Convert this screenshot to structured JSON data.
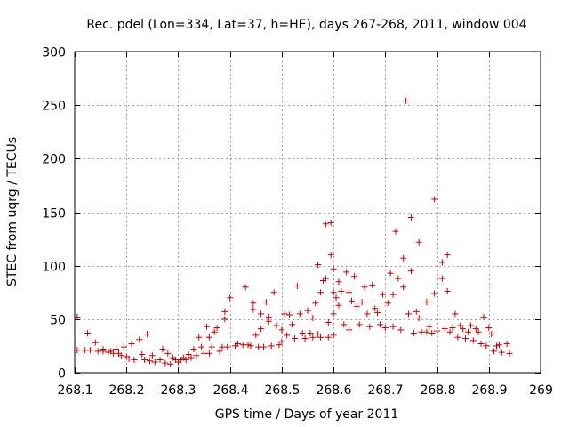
{
  "chart_data": {
    "type": "scatter",
    "title": "Rec. pdel (Lon=334, Lat=37, h=HE), days 267-268, 2011, window 004",
    "xlabel": "GPS time / Days of year 2011",
    "ylabel": "STEC from uqrg / TECUs",
    "xlim": [
      268.1,
      269.0
    ],
    "ylim": [
      0,
      300
    ],
    "xticks": [
      268.1,
      268.2,
      268.3,
      268.4,
      268.5,
      268.6,
      268.7,
      268.8,
      268.9,
      269.0
    ],
    "xtick_labels": [
      "268.1",
      "268.2",
      "268.3",
      "268.4",
      "268.5",
      "268.6",
      "268.7",
      "268.8",
      "268.9",
      "269"
    ],
    "yticks": [
      0,
      50,
      100,
      150,
      200,
      250,
      300
    ],
    "ytick_labels": [
      "0",
      "50",
      "100",
      "150",
      "200",
      "250",
      "300"
    ],
    "grid": true,
    "marker": "+",
    "color": "#cc0000",
    "series": [
      {
        "name": "STEC",
        "points": [
          [
            268.105,
            52
          ],
          [
            268.105,
            21
          ],
          [
            268.12,
            21
          ],
          [
            268.125,
            37
          ],
          [
            268.13,
            21
          ],
          [
            268.14,
            28
          ],
          [
            268.145,
            20
          ],
          [
            268.155,
            22
          ],
          [
            268.155,
            20
          ],
          [
            268.165,
            19
          ],
          [
            268.17,
            20
          ],
          [
            268.175,
            18
          ],
          [
            268.18,
            22
          ],
          [
            268.185,
            18
          ],
          [
            268.19,
            16
          ],
          [
            268.195,
            24
          ],
          [
            268.2,
            15
          ],
          [
            268.205,
            13
          ],
          [
            268.21,
            27
          ],
          [
            268.215,
            12
          ],
          [
            268.225,
            31
          ],
          [
            268.23,
            17
          ],
          [
            268.235,
            12
          ],
          [
            268.24,
            36
          ],
          [
            268.245,
            11
          ],
          [
            268.25,
            16
          ],
          [
            268.255,
            10
          ],
          [
            268.265,
            12
          ],
          [
            268.27,
            22
          ],
          [
            268.275,
            9
          ],
          [
            268.28,
            18
          ],
          [
            268.285,
            8
          ],
          [
            268.29,
            14
          ],
          [
            268.295,
            12
          ],
          [
            268.3,
            10
          ],
          [
            268.305,
            12
          ],
          [
            268.31,
            14
          ],
          [
            268.315,
            12
          ],
          [
            268.32,
            17
          ],
          [
            268.325,
            14
          ],
          [
            268.33,
            22
          ],
          [
            268.335,
            16
          ],
          [
            268.34,
            33
          ],
          [
            268.345,
            24
          ],
          [
            268.35,
            18
          ],
          [
            268.355,
            43
          ],
          [
            268.36,
            33
          ],
          [
            268.36,
            18
          ],
          [
            268.365,
            24
          ],
          [
            268.37,
            38
          ],
          [
            268.375,
            42
          ],
          [
            268.38,
            20
          ],
          [
            268.385,
            24
          ],
          [
            268.39,
            50
          ],
          [
            268.39,
            57
          ],
          [
            268.395,
            24
          ],
          [
            268.4,
            70
          ],
          [
            268.41,
            25
          ],
          [
            268.415,
            27
          ],
          [
            268.425,
            26
          ],
          [
            268.43,
            80
          ],
          [
            268.435,
            26
          ],
          [
            268.44,
            25
          ],
          [
            268.445,
            65
          ],
          [
            268.445,
            59
          ],
          [
            268.45,
            35
          ],
          [
            268.455,
            24
          ],
          [
            268.46,
            55
          ],
          [
            268.46,
            41
          ],
          [
            268.465,
            24
          ],
          [
            268.47,
            66
          ],
          [
            268.475,
            52
          ],
          [
            268.475,
            48
          ],
          [
            268.48,
            25
          ],
          [
            268.485,
            75
          ],
          [
            268.49,
            44
          ],
          [
            268.495,
            26
          ],
          [
            268.5,
            40
          ],
          [
            268.5,
            29
          ],
          [
            268.505,
            55
          ],
          [
            268.51,
            35
          ],
          [
            268.515,
            54
          ],
          [
            268.52,
            45
          ],
          [
            268.525,
            32
          ],
          [
            268.53,
            81
          ],
          [
            268.535,
            55
          ],
          [
            268.54,
            37
          ],
          [
            268.545,
            32
          ],
          [
            268.55,
            58
          ],
          [
            268.555,
            37
          ],
          [
            268.56,
            33
          ],
          [
            268.56,
            51
          ],
          [
            268.565,
            65
          ],
          [
            268.57,
            101
          ],
          [
            268.57,
            36
          ],
          [
            268.575,
            75
          ],
          [
            268.575,
            33
          ],
          [
            268.58,
            86
          ],
          [
            268.585,
            139
          ],
          [
            268.585,
            88
          ],
          [
            268.59,
            47
          ],
          [
            268.59,
            33
          ],
          [
            268.595,
            140
          ],
          [
            268.595,
            110
          ],
          [
            268.6,
            97
          ],
          [
            268.6,
            75
          ],
          [
            268.6,
            55
          ],
          [
            268.6,
            35
          ],
          [
            268.605,
            70
          ],
          [
            268.61,
            85
          ],
          [
            268.61,
            63
          ],
          [
            268.615,
            76
          ],
          [
            268.62,
            45
          ],
          [
            268.625,
            94
          ],
          [
            268.63,
            75
          ],
          [
            268.63,
            40
          ],
          [
            268.635,
            67
          ],
          [
            268.64,
            90
          ],
          [
            268.645,
            62
          ],
          [
            268.65,
            45
          ],
          [
            268.655,
            66
          ],
          [
            268.66,
            80
          ],
          [
            268.665,
            55
          ],
          [
            268.67,
            43
          ],
          [
            268.675,
            82
          ],
          [
            268.68,
            60
          ],
          [
            268.685,
            56
          ],
          [
            268.69,
            45
          ],
          [
            268.695,
            73
          ],
          [
            268.7,
            42
          ],
          [
            268.705,
            65
          ],
          [
            268.71,
            93
          ],
          [
            268.715,
            73
          ],
          [
            268.715,
            43
          ],
          [
            268.72,
            132
          ],
          [
            268.725,
            88
          ],
          [
            268.73,
            40
          ],
          [
            268.735,
            107
          ],
          [
            268.735,
            80
          ],
          [
            268.74,
            254
          ],
          [
            268.745,
            55
          ],
          [
            268.75,
            145
          ],
          [
            268.75,
            95
          ],
          [
            268.755,
            37
          ],
          [
            268.76,
            57
          ],
          [
            268.765,
            51
          ],
          [
            268.765,
            122
          ],
          [
            268.77,
            38
          ],
          [
            268.78,
            66
          ],
          [
            268.78,
            38
          ],
          [
            268.785,
            43
          ],
          [
            268.79,
            37
          ],
          [
            268.795,
            162
          ],
          [
            268.795,
            74
          ],
          [
            268.8,
            39
          ],
          [
            268.81,
            88
          ],
          [
            268.81,
            103
          ],
          [
            268.815,
            41
          ],
          [
            268.82,
            110
          ],
          [
            268.82,
            76
          ],
          [
            268.825,
            38
          ],
          [
            268.83,
            42
          ],
          [
            268.835,
            55
          ],
          [
            268.84,
            33
          ],
          [
            268.845,
            44
          ],
          [
            268.85,
            41
          ],
          [
            268.855,
            32
          ],
          [
            268.86,
            38
          ],
          [
            268.865,
            44
          ],
          [
            268.87,
            30
          ],
          [
            268.875,
            41
          ],
          [
            268.88,
            38
          ],
          [
            268.885,
            27
          ],
          [
            268.89,
            52
          ],
          [
            268.895,
            25
          ],
          [
            268.9,
            42
          ],
          [
            268.905,
            36
          ],
          [
            268.91,
            20
          ],
          [
            268.915,
            25
          ],
          [
            268.92,
            26
          ],
          [
            268.925,
            19
          ],
          [
            268.935,
            27
          ],
          [
            268.94,
            18
          ]
        ]
      }
    ]
  }
}
